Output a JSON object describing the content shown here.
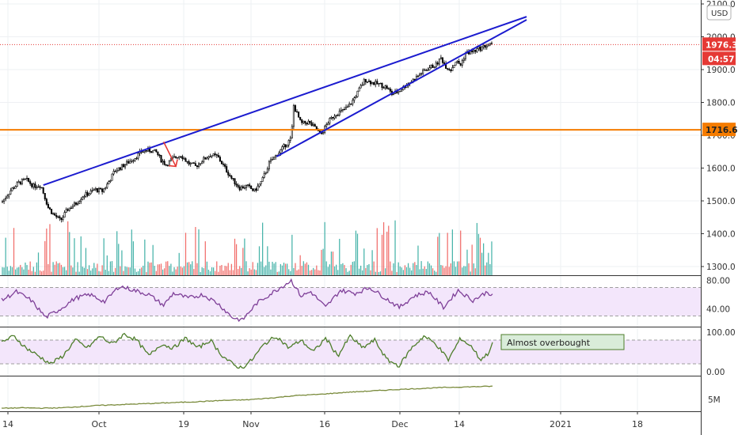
{
  "chart_data": {
    "type": "candlestick",
    "currency": "USD",
    "price_axis": {
      "ticks": [
        "2100.0",
        "2000.0",
        "1900.0",
        "1800.0",
        "1700.0",
        "1600.0",
        "1500.0",
        "1400.0",
        "1300.0"
      ],
      "range": [
        1255,
        2110
      ]
    },
    "x_axis": {
      "ticks": [
        "14",
        "Oct",
        "19",
        "Nov",
        "16",
        "Dec",
        "14",
        "2021",
        "18"
      ]
    },
    "last_price": "1976.3",
    "countdown": "04:57",
    "horizontal_level": "1716.6",
    "annotation": "Almost overbought",
    "colors": {
      "up": "#26a69a",
      "down": "#ef5350",
      "candle": "#000000",
      "wedge": "#1b1bcf",
      "level": "#f57c00",
      "rsi": "#7e3f98",
      "stoch": "#4d7d2a",
      "obv": "#7a8b3c",
      "band": "#f3e6fb",
      "price_label": "#e53935",
      "level_label": "#f57c00"
    },
    "wedge": {
      "upper": [
        [
          0.085,
          1548
        ],
        [
          1.0,
          2025
        ]
      ],
      "lower": [
        [
          0.56,
          1635
        ],
        [
          1.0,
          1995
        ]
      ]
    },
    "price_path": [
      [
        0.0,
        1495
      ],
      [
        0.02,
        1535
      ],
      [
        0.035,
        1555
      ],
      [
        0.05,
        1565
      ],
      [
        0.065,
        1545
      ],
      [
        0.08,
        1548
      ],
      [
        0.095,
        1480
      ],
      [
        0.105,
        1460
      ],
      [
        0.12,
        1440
      ],
      [
        0.135,
        1475
      ],
      [
        0.15,
        1490
      ],
      [
        0.165,
        1515
      ],
      [
        0.18,
        1525
      ],
      [
        0.19,
        1535
      ],
      [
        0.205,
        1530
      ],
      [
        0.215,
        1550
      ],
      [
        0.23,
        1590
      ],
      [
        0.245,
        1605
      ],
      [
        0.26,
        1620
      ],
      [
        0.27,
        1630
      ],
      [
        0.285,
        1650
      ],
      [
        0.3,
        1655
      ],
      [
        0.315,
        1648
      ],
      [
        0.325,
        1625
      ],
      [
        0.335,
        1610
      ],
      [
        0.35,
        1630
      ],
      [
        0.365,
        1640
      ],
      [
        0.38,
        1615
      ],
      [
        0.395,
        1605
      ],
      [
        0.41,
        1625
      ],
      [
        0.425,
        1640
      ],
      [
        0.44,
        1635
      ],
      [
        0.455,
        1600
      ],
      [
        0.47,
        1565
      ],
      [
        0.485,
        1540
      ],
      [
        0.5,
        1545
      ],
      [
        0.515,
        1530
      ],
      [
        0.53,
        1560
      ],
      [
        0.545,
        1615
      ],
      [
        0.56,
        1640
      ],
      [
        0.575,
        1665
      ],
      [
        0.59,
        1690
      ],
      [
        0.595,
        1790
      ],
      [
        0.61,
        1735
      ],
      [
        0.625,
        1740
      ],
      [
        0.64,
        1720
      ],
      [
        0.65,
        1700
      ],
      [
        0.665,
        1740
      ],
      [
        0.68,
        1765
      ],
      [
        0.695,
        1775
      ],
      [
        0.705,
        1785
      ],
      [
        0.715,
        1805
      ],
      [
        0.725,
        1830
      ],
      [
        0.74,
        1870
      ],
      [
        0.755,
        1860
      ],
      [
        0.77,
        1855
      ],
      [
        0.785,
        1845
      ],
      [
        0.795,
        1825
      ],
      [
        0.81,
        1835
      ],
      [
        0.825,
        1855
      ],
      [
        0.84,
        1870
      ],
      [
        0.855,
        1890
      ],
      [
        0.87,
        1905
      ],
      [
        0.885,
        1915
      ],
      [
        0.895,
        1935
      ],
      [
        0.905,
        1910
      ],
      [
        0.915,
        1900
      ],
      [
        0.925,
        1925
      ],
      [
        0.935,
        1915
      ],
      [
        0.945,
        1950
      ],
      [
        0.96,
        1955
      ],
      [
        0.975,
        1965
      ],
      [
        0.99,
        1975
      ],
      [
        1.0,
        1976
      ]
    ],
    "rsi": {
      "ticks": [
        "80.00",
        "40.00"
      ],
      "range": [
        15,
        85
      ],
      "overbought": 70,
      "oversold": 30,
      "path": [
        [
          0.0,
          52
        ],
        [
          0.03,
          64
        ],
        [
          0.06,
          52
        ],
        [
          0.09,
          28
        ],
        [
          0.12,
          40
        ],
        [
          0.15,
          55
        ],
        [
          0.18,
          60
        ],
        [
          0.21,
          50
        ],
        [
          0.24,
          72
        ],
        [
          0.27,
          66
        ],
        [
          0.3,
          60
        ],
        [
          0.33,
          45
        ],
        [
          0.35,
          62
        ],
        [
          0.38,
          55
        ],
        [
          0.41,
          60
        ],
        [
          0.44,
          48
        ],
        [
          0.47,
          28
        ],
        [
          0.49,
          24
        ],
        [
          0.52,
          48
        ],
        [
          0.55,
          62
        ],
        [
          0.59,
          80
        ],
        [
          0.61,
          58
        ],
        [
          0.63,
          64
        ],
        [
          0.66,
          42
        ],
        [
          0.69,
          66
        ],
        [
          0.72,
          62
        ],
        [
          0.75,
          70
        ],
        [
          0.78,
          56
        ],
        [
          0.81,
          42
        ],
        [
          0.84,
          58
        ],
        [
          0.87,
          64
        ],
        [
          0.9,
          42
        ],
        [
          0.93,
          66
        ],
        [
          0.96,
          52
        ],
        [
          0.99,
          64
        ],
        [
          1.0,
          58
        ]
      ]
    },
    "stoch": {
      "ticks": [
        "100.00",
        "0.00"
      ],
      "range": [
        -10,
        110
      ],
      "overbought": 80,
      "oversold": 20,
      "path": [
        [
          0.0,
          75
        ],
        [
          0.025,
          90
        ],
        [
          0.05,
          60
        ],
        [
          0.075,
          40
        ],
        [
          0.1,
          20
        ],
        [
          0.125,
          40
        ],
        [
          0.15,
          80
        ],
        [
          0.175,
          60
        ],
        [
          0.2,
          90
        ],
        [
          0.225,
          70
        ],
        [
          0.25,
          95
        ],
        [
          0.275,
          80
        ],
        [
          0.3,
          40
        ],
        [
          0.325,
          70
        ],
        [
          0.35,
          60
        ],
        [
          0.375,
          85
        ],
        [
          0.4,
          60
        ],
        [
          0.425,
          80
        ],
        [
          0.45,
          40
        ],
        [
          0.475,
          15
        ],
        [
          0.49,
          10
        ],
        [
          0.51,
          30
        ],
        [
          0.535,
          70
        ],
        [
          0.56,
          90
        ],
        [
          0.585,
          60
        ],
        [
          0.61,
          80
        ],
        [
          0.635,
          50
        ],
        [
          0.66,
          85
        ],
        [
          0.685,
          40
        ],
        [
          0.71,
          90
        ],
        [
          0.735,
          60
        ],
        [
          0.76,
          80
        ],
        [
          0.785,
          30
        ],
        [
          0.81,
          15
        ],
        [
          0.835,
          60
        ],
        [
          0.86,
          90
        ],
        [
          0.885,
          70
        ],
        [
          0.91,
          30
        ],
        [
          0.935,
          85
        ],
        [
          0.96,
          60
        ],
        [
          0.975,
          30
        ],
        [
          0.99,
          45
        ],
        [
          1.0,
          70
        ]
      ]
    },
    "obv": {
      "ticks": [
        "5M"
      ],
      "range": [
        0,
        10
      ],
      "path": [
        [
          0.0,
          0.5
        ],
        [
          0.05,
          0.6
        ],
        [
          0.08,
          0.5
        ],
        [
          0.12,
          0.6
        ],
        [
          0.16,
          1.0
        ],
        [
          0.2,
          1.4
        ],
        [
          0.3,
          2.0
        ],
        [
          0.4,
          2.6
        ],
        [
          0.45,
          3.0
        ],
        [
          0.5,
          3.2
        ],
        [
          0.55,
          3.8
        ],
        [
          0.6,
          4.6
        ],
        [
          0.65,
          5.0
        ],
        [
          0.7,
          5.6
        ],
        [
          0.8,
          6.5
        ],
        [
          0.9,
          7.2
        ],
        [
          1.0,
          7.6
        ]
      ]
    }
  }
}
